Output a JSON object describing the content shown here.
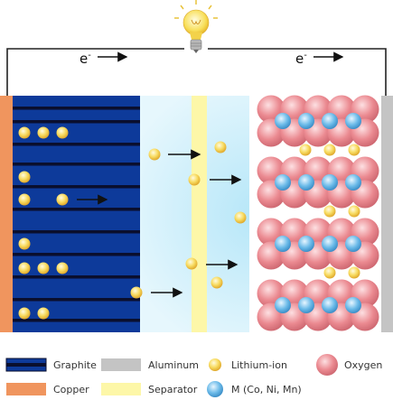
{
  "circuit": {
    "electron_left": "e",
    "electron_right": "e",
    "charge_sign": "-"
  },
  "legend": {
    "graphite": "Graphite",
    "aluminum": "Aluminum",
    "lithium_ion": "Lithium-ion",
    "oxygen": "Oxygen",
    "copper": "Copper",
    "separator": "Separator",
    "metal": "M (Co, Ni, Mn)"
  },
  "colors": {
    "graphite": "#0d3a9a",
    "graphite_line": "#0a0f2e",
    "copper": "#f0955e",
    "aluminum": "#c4c4c4",
    "separator": "#fdf7a8",
    "electrolyte": "#d4f1fb",
    "lithium": "#f6d24a",
    "oxygen": "#e8828a",
    "metal": "#5fb3e6"
  }
}
